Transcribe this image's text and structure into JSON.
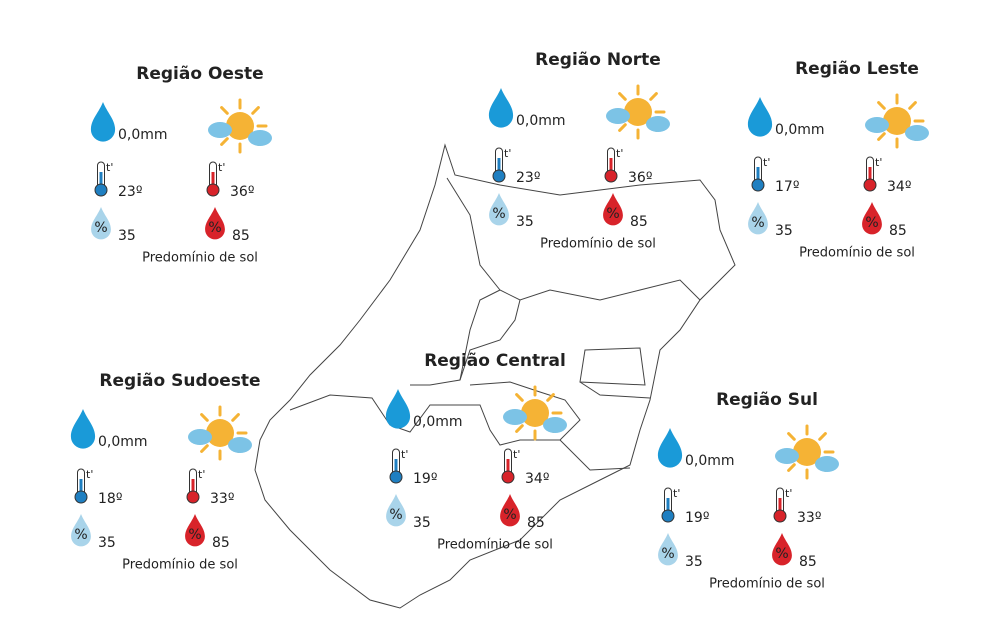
{
  "icon_labels": {
    "thermometer": "t'",
    "humidity": "%"
  },
  "regions": [
    {
      "title": "Região Oeste",
      "rain": "0,0mm",
      "temp_min": "23º",
      "temp_max": "36º",
      "humidity_min": "35",
      "humidity_max": "85",
      "description": "Predomínio de sol"
    },
    {
      "title": "Região Norte",
      "rain": "0,0mm",
      "temp_min": "23º",
      "temp_max": "36º",
      "humidity_min": "35",
      "humidity_max": "85",
      "description": "Predomínio de sol"
    },
    {
      "title": "Região Leste",
      "rain": "0,0mm",
      "temp_min": "17º",
      "temp_max": "34º",
      "humidity_min": "35",
      "humidity_max": "85",
      "description": "Predomínio de sol"
    },
    {
      "title": "Região Sudoeste",
      "rain": "0,0mm",
      "temp_min": "18º",
      "temp_max": "33º",
      "humidity_min": "35",
      "humidity_max": "85",
      "description": "Predomínio de sol"
    },
    {
      "title": "Região Central",
      "rain": "0,0mm",
      "temp_min": "19º",
      "temp_max": "34º",
      "humidity_min": "35",
      "humidity_max": "85",
      "description": "Predomínio de sol"
    },
    {
      "title": "Região Sul",
      "rain": "0,0mm",
      "temp_min": "19º",
      "temp_max": "33º",
      "humidity_min": "35",
      "humidity_max": "85",
      "description": "Predomínio de sol"
    }
  ]
}
